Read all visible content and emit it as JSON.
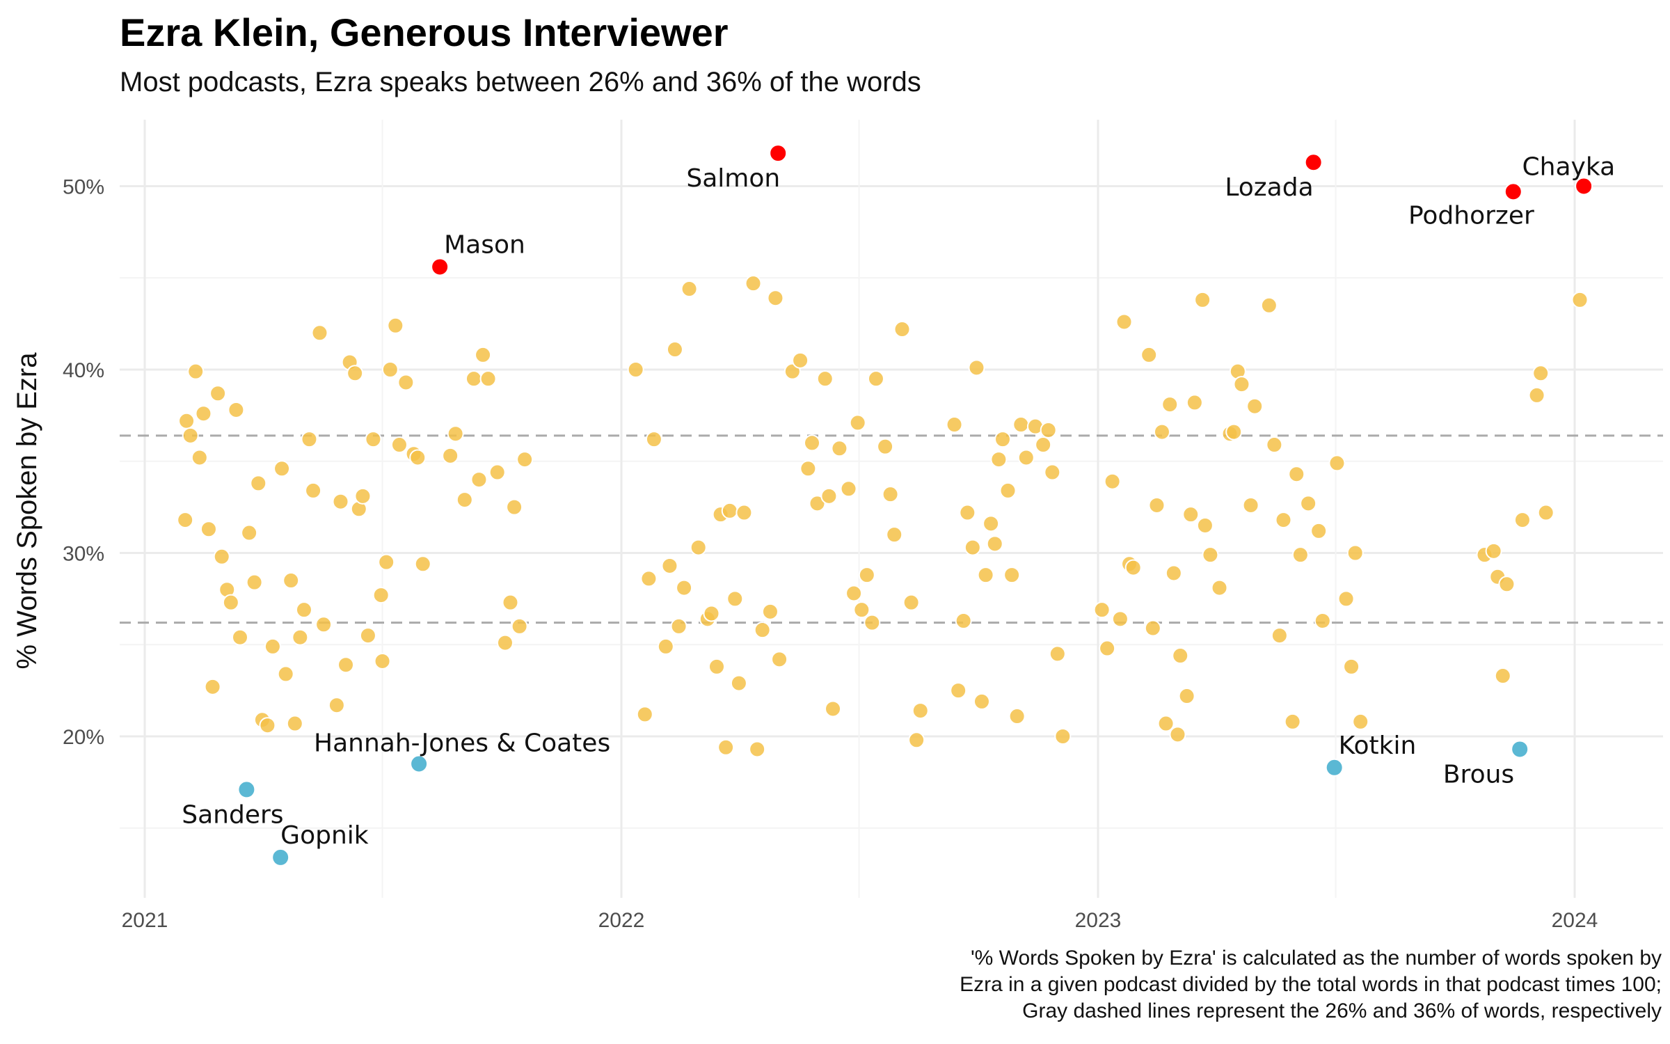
{
  "title": "Ezra Klein, Generous Interviewer",
  "subtitle": "Most podcasts, Ezra speaks between 26% and 36% of the words",
  "caption": [
    "'% Words Spoken by Ezra' is calculated as the number of words spoken by",
    "Ezra in a given podcast divided by the total words in that podcast times 100;",
    "Gray dashed lines represent the 26% and 36% of words, respectively"
  ],
  "colors": {
    "typical": "#F5C148",
    "high": "#FF0000",
    "low": "#5BB8D4",
    "grid": "#EBEBEB",
    "reference_line": "#AAAAAA"
  },
  "chart_data": {
    "type": "scatter",
    "ylabel": "% Words Spoken by Ezra",
    "xlabel": "",
    "x_ticks": [
      "2021",
      "2022",
      "2023",
      "2024"
    ],
    "y_ticks": [
      "20%",
      "30%",
      "40%",
      "50%"
    ],
    "xlim": [
      "2021-01-01",
      "2024-02-15"
    ],
    "ylim": [
      11.5,
      53.5
    ],
    "grid": true,
    "legend": "none",
    "reference_lines": [
      26.2,
      36.4
    ],
    "highlight_points": [
      {
        "label": "Mason",
        "date": "2021-08-15",
        "value": 45.6,
        "group": "high"
      },
      {
        "label": "Salmon",
        "date": "2022-05-01",
        "value": 51.8,
        "group": "high"
      },
      {
        "label": "Lozada",
        "date": "2023-06-15",
        "value": 51.3,
        "group": "high"
      },
      {
        "label": "Podhorzer",
        "date": "2023-11-15",
        "value": 49.7,
        "group": "high"
      },
      {
        "label": "Chayka",
        "date": "2024-01-08",
        "value": 50.0,
        "group": "high"
      },
      {
        "label": "Sanders",
        "date": "2021-03-20",
        "value": 17.1,
        "group": "low"
      },
      {
        "label": "Gopnik",
        "date": "2021-04-15",
        "value": 13.4,
        "group": "low"
      },
      {
        "label": "Hannah-Jones & Coates",
        "date": "2021-07-30",
        "value": 18.5,
        "group": "low"
      },
      {
        "label": "Kotkin",
        "date": "2023-07-01",
        "value": 18.3,
        "group": "low"
      },
      {
        "label": "Brous",
        "date": "2023-11-20",
        "value": 19.3,
        "group": "low"
      }
    ],
    "points": [
      [
        "2021-02-01",
        31.8
      ],
      [
        "2021-02-02",
        37.2
      ],
      [
        "2021-02-05",
        36.4
      ],
      [
        "2021-02-09",
        39.9
      ],
      [
        "2021-02-12",
        35.2
      ],
      [
        "2021-02-15",
        37.6
      ],
      [
        "2021-02-19",
        31.3
      ],
      [
        "2021-02-22",
        22.7
      ],
      [
        "2021-02-26",
        38.7
      ],
      [
        "2021-03-01",
        29.8
      ],
      [
        "2021-03-05",
        28.0
      ],
      [
        "2021-03-08",
        27.3
      ],
      [
        "2021-03-12",
        37.8
      ],
      [
        "2021-03-15",
        25.4
      ],
      [
        "2021-03-22",
        31.1
      ],
      [
        "2021-03-26",
        28.4
      ],
      [
        "2021-03-29",
        33.8
      ],
      [
        "2021-04-01",
        20.9
      ],
      [
        "2021-04-05",
        20.6
      ],
      [
        "2021-04-09",
        24.9
      ],
      [
        "2021-04-16",
        34.6
      ],
      [
        "2021-04-19",
        23.4
      ],
      [
        "2021-04-23",
        28.5
      ],
      [
        "2021-04-26",
        20.7
      ],
      [
        "2021-04-30",
        25.4
      ],
      [
        "2021-05-03",
        26.9
      ],
      [
        "2021-05-07",
        36.2
      ],
      [
        "2021-05-10",
        33.4
      ],
      [
        "2021-05-15",
        42.0
      ],
      [
        "2021-05-18",
        26.1
      ],
      [
        "2021-05-28",
        21.7
      ],
      [
        "2021-05-31",
        32.8
      ],
      [
        "2021-06-04",
        23.9
      ],
      [
        "2021-06-07",
        40.4
      ],
      [
        "2021-06-11",
        39.8
      ],
      [
        "2021-06-14",
        32.4
      ],
      [
        "2021-06-17",
        33.1
      ],
      [
        "2021-06-21",
        25.5
      ],
      [
        "2021-06-25",
        36.2
      ],
      [
        "2021-07-01",
        27.7
      ],
      [
        "2021-07-02",
        24.1
      ],
      [
        "2021-07-05",
        29.5
      ],
      [
        "2021-07-08",
        40.0
      ],
      [
        "2021-07-12",
        42.4
      ],
      [
        "2021-07-15",
        35.9
      ],
      [
        "2021-07-20",
        39.3
      ],
      [
        "2021-07-26",
        35.4
      ],
      [
        "2021-07-29",
        35.2
      ],
      [
        "2021-08-02",
        29.4
      ],
      [
        "2021-08-23",
        35.3
      ],
      [
        "2021-08-27",
        36.5
      ],
      [
        "2021-09-03",
        32.9
      ],
      [
        "2021-09-10",
        39.5
      ],
      [
        "2021-09-14",
        34.0
      ],
      [
        "2021-09-17",
        40.8
      ],
      [
        "2021-09-21",
        39.5
      ],
      [
        "2021-09-28",
        34.4
      ],
      [
        "2021-10-04",
        25.1
      ],
      [
        "2021-10-08",
        27.3
      ],
      [
        "2021-10-11",
        32.5
      ],
      [
        "2021-10-15",
        26.0
      ],
      [
        "2021-10-19",
        35.1
      ],
      [
        "2022-01-12",
        40.0
      ],
      [
        "2022-01-19",
        21.2
      ],
      [
        "2022-01-22",
        28.6
      ],
      [
        "2022-01-26",
        36.2
      ],
      [
        "2022-02-04",
        24.9
      ],
      [
        "2022-02-07",
        29.3
      ],
      [
        "2022-02-11",
        41.1
      ],
      [
        "2022-02-14",
        26.0
      ],
      [
        "2022-02-18",
        28.1
      ],
      [
        "2022-02-22",
        44.4
      ],
      [
        "2022-03-01",
        30.3
      ],
      [
        "2022-03-08",
        26.4
      ],
      [
        "2022-03-11",
        26.7
      ],
      [
        "2022-03-15",
        23.8
      ],
      [
        "2022-03-18",
        32.1
      ],
      [
        "2022-03-22",
        19.4
      ],
      [
        "2022-03-25",
        32.3
      ],
      [
        "2022-03-29",
        27.5
      ],
      [
        "2022-04-01",
        22.9
      ],
      [
        "2022-04-05",
        32.2
      ],
      [
        "2022-04-12",
        44.7
      ],
      [
        "2022-04-15",
        19.3
      ],
      [
        "2022-04-19",
        25.8
      ],
      [
        "2022-04-25",
        26.8
      ],
      [
        "2022-04-29",
        43.9
      ],
      [
        "2022-05-02",
        24.2
      ],
      [
        "2022-05-12",
        39.9
      ],
      [
        "2022-05-18",
        40.5
      ],
      [
        "2022-05-24",
        34.6
      ],
      [
        "2022-05-27",
        36.0
      ],
      [
        "2022-05-31",
        32.7
      ],
      [
        "2022-06-06",
        39.5
      ],
      [
        "2022-06-09",
        33.1
      ],
      [
        "2022-06-12",
        21.5
      ],
      [
        "2022-06-17",
        35.7
      ],
      [
        "2022-06-24",
        33.5
      ],
      [
        "2022-06-28",
        27.8
      ],
      [
        "2022-07-01",
        37.1
      ],
      [
        "2022-07-04",
        26.9
      ],
      [
        "2022-07-08",
        28.8
      ],
      [
        "2022-07-12",
        26.2
      ],
      [
        "2022-07-15",
        39.5
      ],
      [
        "2022-07-22",
        35.8
      ],
      [
        "2022-07-26",
        33.2
      ],
      [
        "2022-07-29",
        31.0
      ],
      [
        "2022-08-04",
        42.2
      ],
      [
        "2022-08-11",
        27.3
      ],
      [
        "2022-08-15",
        19.8
      ],
      [
        "2022-08-18",
        21.4
      ],
      [
        "2022-09-13",
        37.0
      ],
      [
        "2022-09-16",
        22.5
      ],
      [
        "2022-09-20",
        26.3
      ],
      [
        "2022-09-23",
        32.2
      ],
      [
        "2022-09-27",
        30.3
      ],
      [
        "2022-09-30",
        40.1
      ],
      [
        "2022-10-04",
        21.9
      ],
      [
        "2022-10-07",
        28.8
      ],
      [
        "2022-10-11",
        31.6
      ],
      [
        "2022-10-14",
        30.5
      ],
      [
        "2022-10-17",
        35.1
      ],
      [
        "2022-10-20",
        36.2
      ],
      [
        "2022-10-24",
        33.4
      ],
      [
        "2022-10-27",
        28.8
      ],
      [
        "2022-10-31",
        21.1
      ],
      [
        "2022-11-03",
        37.0
      ],
      [
        "2022-11-07",
        35.2
      ],
      [
        "2022-11-14",
        36.9
      ],
      [
        "2022-11-20",
        35.9
      ],
      [
        "2022-11-24",
        36.7
      ],
      [
        "2022-11-27",
        34.4
      ],
      [
        "2022-12-01",
        24.5
      ],
      [
        "2022-12-05",
        20.0
      ],
      [
        "2023-01-04",
        26.9
      ],
      [
        "2023-01-08",
        24.8
      ],
      [
        "2023-01-12",
        33.9
      ],
      [
        "2023-01-18",
        26.4
      ],
      [
        "2023-01-21",
        42.6
      ],
      [
        "2023-01-25",
        29.4
      ],
      [
        "2023-01-28",
        29.2
      ],
      [
        "2023-02-09",
        40.8
      ],
      [
        "2023-02-12",
        25.9
      ],
      [
        "2023-02-15",
        32.6
      ],
      [
        "2023-02-19",
        36.6
      ],
      [
        "2023-02-22",
        20.7
      ],
      [
        "2023-02-25",
        38.1
      ],
      [
        "2023-02-28",
        28.9
      ],
      [
        "2023-03-03",
        20.1
      ],
      [
        "2023-03-05",
        24.4
      ],
      [
        "2023-03-10",
        22.2
      ],
      [
        "2023-03-13",
        32.1
      ],
      [
        "2023-03-16",
        38.2
      ],
      [
        "2023-03-22",
        43.8
      ],
      [
        "2023-03-24",
        31.5
      ],
      [
        "2023-03-28",
        29.9
      ],
      [
        "2023-04-04",
        28.1
      ],
      [
        "2023-04-12",
        36.5
      ],
      [
        "2023-04-15",
        36.6
      ],
      [
        "2023-04-18",
        39.9
      ],
      [
        "2023-04-21",
        39.2
      ],
      [
        "2023-04-28",
        32.6
      ],
      [
        "2023-05-01",
        38.0
      ],
      [
        "2023-05-12",
        43.5
      ],
      [
        "2023-05-16",
        35.9
      ],
      [
        "2023-05-20",
        25.5
      ],
      [
        "2023-05-23",
        31.8
      ],
      [
        "2023-05-30",
        20.8
      ],
      [
        "2023-06-02",
        34.3
      ],
      [
        "2023-06-05",
        29.9
      ],
      [
        "2023-06-11",
        32.7
      ],
      [
        "2023-06-19",
        31.2
      ],
      [
        "2023-06-22",
        26.3
      ],
      [
        "2023-07-03",
        34.9
      ],
      [
        "2023-07-10",
        27.5
      ],
      [
        "2023-07-14",
        23.8
      ],
      [
        "2023-07-17",
        30.0
      ],
      [
        "2023-07-21",
        20.8
      ],
      [
        "2023-10-24",
        29.9
      ],
      [
        "2023-10-31",
        30.1
      ],
      [
        "2023-11-03",
        28.7
      ],
      [
        "2023-11-07",
        23.3
      ],
      [
        "2023-11-10",
        28.3
      ],
      [
        "2023-11-22",
        31.8
      ],
      [
        "2023-12-03",
        38.6
      ],
      [
        "2023-12-06",
        39.8
      ],
      [
        "2023-12-10",
        32.2
      ],
      [
        "2024-01-05",
        43.8
      ]
    ]
  }
}
